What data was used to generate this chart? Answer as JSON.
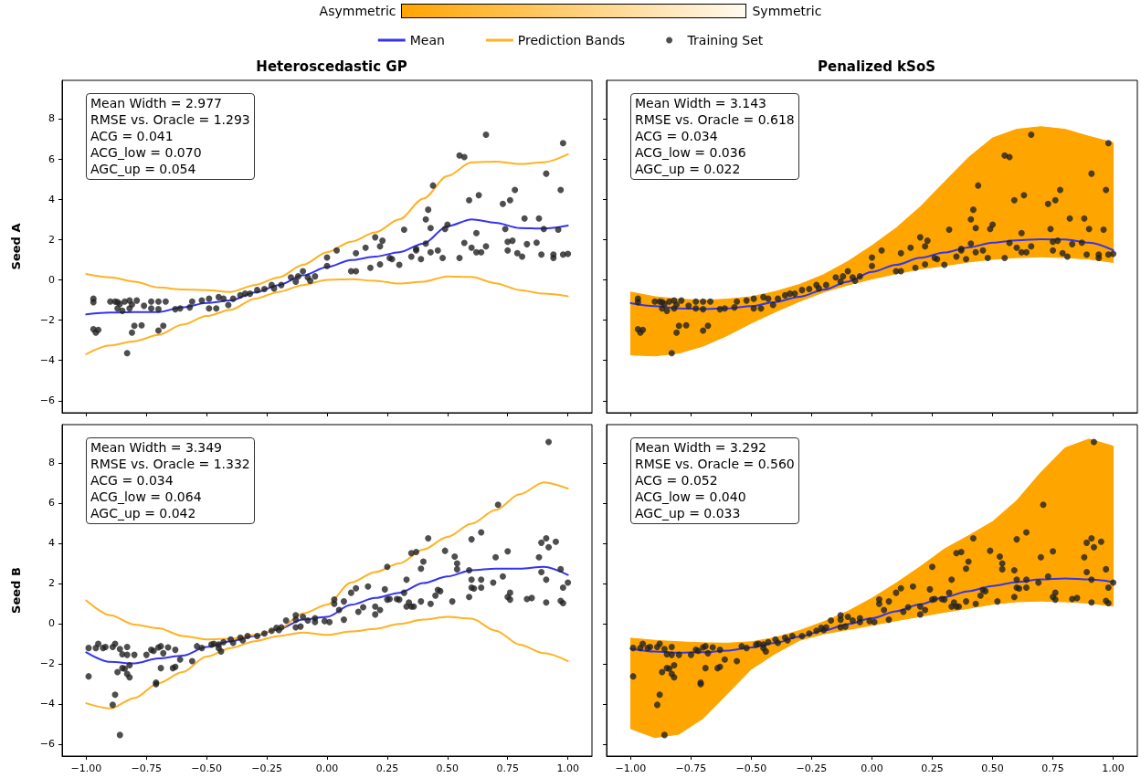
{
  "chart_data": [
    {
      "type": "other",
      "annotations": [
        "Asymmetric",
        "Symmetric"
      ]
    },
    {
      "type": "line",
      "title": "Heteroscedastic GP",
      "ylabel": "Seed A",
      "legend": "top",
      "marker": "none",
      "tick_labels": "y",
      "xlim": [
        -1.1,
        1.1
      ],
      "ylim": [
        -6.6,
        9.9
      ],
      "xticks": [
        -1,
        -0.75,
        -0.5,
        -0.25,
        0,
        0.25,
        0.5,
        0.75,
        1
      ],
      "yticks": [
        {
          "value": -6,
          "label": "−6"
        },
        {
          "value": -4,
          "label": "−4"
        },
        {
          "value": -2,
          "label": "−2"
        },
        0,
        2,
        4,
        6,
        8
      ],
      "annotations": [
        "Mean Width = 2.977",
        "RMSE vs. Oracle = 1.293",
        "ACG = 0.041",
        "ACG_low = 0.070",
        "AGC_up = 0.054"
      ],
      "series": [
        {
          "name": "Mean",
          "type": "line",
          "color": "#3434f0",
          "x": [
            -1,
            -0.9,
            -0.8,
            -0.7,
            -0.6,
            -0.5,
            -0.4,
            -0.3,
            -0.2,
            -0.1,
            0,
            0.1,
            0.2,
            0.3,
            0.4,
            0.5,
            0.6,
            0.7,
            0.8,
            0.9,
            1
          ],
          "values": [
            -1.72,
            -1.63,
            -1.6,
            -1.6,
            -1.37,
            -1.15,
            -1.03,
            -0.63,
            -0.26,
            0.22,
            0.63,
            0.98,
            1.15,
            1.37,
            1.8,
            2.66,
            3.0,
            2.83,
            2.57,
            2.54,
            2.69
          ]
        },
        {
          "name": "Prediction Bands",
          "type": "line",
          "color": "#ffb224",
          "x": [
            -1,
            -0.9,
            -0.8,
            -0.7,
            -0.6,
            -0.5,
            -0.4,
            -0.3,
            -0.2,
            -0.1,
            0,
            0.1,
            0.2,
            0.3,
            0.4,
            0.5,
            0.6,
            0.7,
            0.8,
            0.9,
            1
          ],
          "values": [
            0.29,
            0.12,
            -0.09,
            -0.38,
            -0.48,
            -0.51,
            -0.6,
            -0.26,
            0.12,
            0.74,
            1.37,
            1.89,
            2.35,
            3.0,
            4.03,
            5.15,
            5.83,
            5.87,
            5.75,
            5.83,
            6.23
          ]
        },
        {
          "type": "line",
          "color": "#ffb224",
          "x": [
            -1,
            -0.9,
            -0.8,
            -0.7,
            -0.6,
            -0.5,
            -0.4,
            -0.3,
            -0.2,
            -0.1,
            0,
            0.1,
            0.2,
            0.3,
            0.4,
            0.5,
            0.6,
            0.7,
            0.8,
            0.9,
            1
          ],
          "values": [
            -3.69,
            -3.26,
            -3.05,
            -2.74,
            -2.23,
            -1.8,
            -1.49,
            -0.94,
            -0.6,
            -0.26,
            0,
            0.03,
            -0.05,
            -0.19,
            -0.09,
            0.17,
            0.14,
            -0.17,
            -0.51,
            -0.69,
            -0.82
          ]
        },
        {
          "name": "Training Set",
          "type": "scatter",
          "marker": "circle",
          "color": "#222222",
          "x": [
            -0.97,
            -0.97,
            -0.97,
            -0.96,
            -0.95,
            -0.9,
            -0.88,
            -0.87,
            -0.86,
            -0.87,
            -0.85,
            -0.84,
            -0.82,
            -0.82,
            -0.81,
            -0.83,
            -0.81,
            -0.8,
            -0.79,
            -0.77,
            -0.76,
            -0.73,
            -0.73,
            -0.7,
            -0.7,
            -0.7,
            -0.68,
            -0.67,
            -0.63,
            -0.61,
            -0.57,
            -0.56,
            -0.52,
            -0.49,
            -0.49,
            -0.46,
            -0.45,
            -0.43,
            -0.41,
            -0.39,
            -0.36,
            -0.34,
            -0.32,
            -0.29,
            -0.26,
            -0.23,
            -0.22,
            -0.19,
            -0.15,
            -0.13,
            -0.12,
            -0.1,
            -0.08,
            -0.07,
            -0.05,
            0.0,
            0.0,
            0.04,
            0.1,
            0.12,
            0.12,
            0.16,
            0.18,
            0.2,
            0.22,
            0.22,
            0.23,
            0.26,
            0.27,
            0.3,
            0.32,
            0.35,
            0.37,
            0.37,
            0.39,
            0.41,
            0.41,
            0.42,
            0.43,
            0.43,
            0.44,
            0.46,
            0.48,
            0.49,
            0.5,
            0.55,
            0.55,
            0.57,
            0.57,
            0.59,
            0.6,
            0.62,
            0.62,
            0.63,
            0.64,
            0.66,
            0.66,
            0.73,
            0.74,
            0.75,
            0.75,
            0.76,
            0.77,
            0.78,
            0.79,
            0.81,
            0.82,
            0.83,
            0.87,
            0.88,
            0.89,
            0.9,
            0.91,
            0.94,
            0.94,
            0.96,
            0.97,
            0.98,
            0.98,
            1.0
          ],
          "values": [
            -0.94,
            -1.11,
            -2.45,
            -2.62,
            -2.49,
            -1.08,
            -1.08,
            -1.11,
            -1.2,
            -1.42,
            -1.54,
            -1.08,
            -1.03,
            -1.42,
            -1.23,
            -3.64,
            -2.62,
            -2.28,
            -1.03,
            -2.26,
            -1.29,
            -1.08,
            -1.42,
            -2.52,
            -1.08,
            -1.46,
            -2.28,
            -1.08,
            -1.46,
            -1.42,
            -1.37,
            -1.08,
            -1.03,
            -0.94,
            -1.42,
            -1.42,
            -0.86,
            -0.94,
            -1.25,
            -0.94,
            -0.77,
            -0.69,
            -0.69,
            -0.51,
            -0.46,
            -0.26,
            -0.43,
            -0.26,
            0.12,
            -0.09,
            0.17,
            0.43,
            0.12,
            -0.05,
            0.17,
            0.69,
            1.11,
            1.46,
            0.43,
            0.43,
            1.32,
            1.59,
            0.6,
            2.11,
            1.66,
            0.77,
            1.94,
            1.08,
            1.03,
            0.74,
            2.49,
            1.15,
            1.54,
            1.46,
            1.03,
            1.8,
            3.0,
            3.48,
            2.57,
            1.37,
            4.68,
            1.46,
            1.08,
            2.52,
            2.74,
            6.17,
            1.08,
            1.83,
            6.09,
            3.95,
            1.59,
            1.37,
            2.32,
            4.2,
            1.37,
            1.66,
            7.2,
            3.77,
            2.52,
            1.89,
            1.46,
            3.95,
            1.94,
            4.46,
            1.32,
            1.15,
            3.04,
            1.77,
            1.84,
            3.04,
            1.25,
            2.52,
            5.27,
            1.08,
            1.25,
            2.49,
            4.46,
            6.78,
            1.25,
            1.29
          ]
        }
      ]
    },
    {
      "type": "line",
      "title": "Penalized kSoS",
      "marker": "none",
      "tick_labels": false,
      "xlim": [
        -1.1,
        1.1
      ],
      "ylim": [
        -6.6,
        9.9
      ],
      "xticks": [
        -1,
        -0.75,
        -0.5,
        -0.25,
        0,
        0.25,
        0.5,
        0.75,
        1
      ],
      "yticks": [
        -6,
        -4,
        -2,
        0,
        2,
        4,
        6,
        8
      ],
      "annotations": [
        "Mean Width = 3.143",
        "RMSE vs. Oracle = 0.618",
        "ACG = 0.034",
        "ACG_low = 0.036",
        "AGC_up = 0.022"
      ],
      "series": [
        {
          "type": "line",
          "color": "#3434f0",
          "x": [
            -1,
            -0.9,
            -0.8,
            -0.7,
            -0.6,
            -0.5,
            -0.4,
            -0.3,
            -0.2,
            -0.1,
            0,
            0.1,
            0.2,
            0.3,
            0.4,
            0.5,
            0.6,
            0.7,
            0.8,
            0.9,
            1
          ],
          "values": [
            -1.16,
            -1.31,
            -1.42,
            -1.45,
            -1.42,
            -1.31,
            -1.1,
            -0.84,
            -0.49,
            -0.09,
            0.39,
            0.74,
            1.09,
            1.35,
            1.61,
            1.84,
            1.96,
            2.01,
            2.0,
            1.84,
            1.47
          ],
          "lower": [
            -3.73,
            -3.78,
            -3.64,
            -3.29,
            -2.77,
            -2.15,
            -1.59,
            -1.07,
            -0.61,
            -0.26,
            0.04,
            0.3,
            0.53,
            0.7,
            0.88,
            1.02,
            1.1,
            1.14,
            1.1,
            1.03,
            0.86
          ],
          "upper": [
            -0.61,
            -0.84,
            -0.96,
            -1.02,
            -0.96,
            -0.84,
            -0.58,
            -0.23,
            0.26,
            0.91,
            1.7,
            2.57,
            3.62,
            4.85,
            6.07,
            7.04,
            7.47,
            7.6,
            7.47,
            7.12,
            6.81
          ]
        },
        {
          "type": "scatter",
          "marker": "circle",
          "color": "#222222",
          "x": [
            -0.97,
            -0.97,
            -0.97,
            -0.96,
            -0.95,
            -0.9,
            -0.88,
            -0.87,
            -0.86,
            -0.87,
            -0.85,
            -0.84,
            -0.82,
            -0.82,
            -0.81,
            -0.83,
            -0.81,
            -0.8,
            -0.79,
            -0.77,
            -0.76,
            -0.73,
            -0.73,
            -0.7,
            -0.7,
            -0.7,
            -0.68,
            -0.67,
            -0.63,
            -0.61,
            -0.57,
            -0.56,
            -0.52,
            -0.49,
            -0.49,
            -0.46,
            -0.45,
            -0.43,
            -0.41,
            -0.39,
            -0.36,
            -0.34,
            -0.32,
            -0.29,
            -0.26,
            -0.23,
            -0.22,
            -0.19,
            -0.15,
            -0.13,
            -0.12,
            -0.1,
            -0.08,
            -0.07,
            -0.05,
            0.0,
            0.0,
            0.04,
            0.1,
            0.12,
            0.12,
            0.16,
            0.18,
            0.2,
            0.22,
            0.22,
            0.23,
            0.26,
            0.27,
            0.3,
            0.32,
            0.35,
            0.37,
            0.37,
            0.39,
            0.41,
            0.41,
            0.42,
            0.43,
            0.43,
            0.44,
            0.46,
            0.48,
            0.49,
            0.5,
            0.55,
            0.55,
            0.57,
            0.57,
            0.59,
            0.6,
            0.62,
            0.62,
            0.63,
            0.64,
            0.66,
            0.66,
            0.73,
            0.74,
            0.75,
            0.75,
            0.76,
            0.77,
            0.78,
            0.79,
            0.81,
            0.82,
            0.83,
            0.87,
            0.88,
            0.89,
            0.9,
            0.91,
            0.94,
            0.94,
            0.96,
            0.97,
            0.98,
            0.98,
            1.0
          ],
          "values": [
            -0.94,
            -1.11,
            -2.45,
            -2.62,
            -2.49,
            -1.08,
            -1.08,
            -1.11,
            -1.2,
            -1.42,
            -1.54,
            -1.08,
            -1.03,
            -1.42,
            -1.23,
            -3.64,
            -2.62,
            -2.28,
            -1.03,
            -2.26,
            -1.29,
            -1.08,
            -1.42,
            -2.52,
            -1.08,
            -1.46,
            -2.28,
            -1.08,
            -1.46,
            -1.42,
            -1.37,
            -1.08,
            -1.03,
            -0.94,
            -1.42,
            -1.42,
            -0.86,
            -0.94,
            -1.25,
            -0.94,
            -0.77,
            -0.69,
            -0.69,
            -0.51,
            -0.46,
            -0.26,
            -0.43,
            -0.26,
            0.12,
            -0.09,
            0.17,
            0.43,
            0.12,
            -0.05,
            0.17,
            0.69,
            1.11,
            1.46,
            0.43,
            0.43,
            1.32,
            1.59,
            0.6,
            2.11,
            1.66,
            0.77,
            1.94,
            1.08,
            1.03,
            0.74,
            2.49,
            1.15,
            1.54,
            1.46,
            1.03,
            1.8,
            3.0,
            3.48,
            2.57,
            1.37,
            4.68,
            1.46,
            1.08,
            2.52,
            2.74,
            6.17,
            1.08,
            1.83,
            6.09,
            3.95,
            1.59,
            1.37,
            2.32,
            4.2,
            1.37,
            1.66,
            7.2,
            3.77,
            2.52,
            1.89,
            1.46,
            3.95,
            1.94,
            4.46,
            1.32,
            1.15,
            3.04,
            1.77,
            1.84,
            3.04,
            1.25,
            2.52,
            5.27,
            1.08,
            1.25,
            2.49,
            4.46,
            6.78,
            1.25,
            1.29
          ]
        }
      ]
    },
    {
      "type": "line",
      "ylabel": "Seed B",
      "marker": "none",
      "xlim": [
        -1.1,
        1.1
      ],
      "ylim": [
        -6.6,
        9.9
      ],
      "xticks": [
        {
          "value": -1,
          "label": "−1.00"
        },
        {
          "value": -0.75,
          "label": "−0.75"
        },
        {
          "value": -0.5,
          "label": "−0.50"
        },
        {
          "value": -0.25,
          "label": "−0.25"
        },
        {
          "value": 0,
          "label": "0.00"
        },
        {
          "value": 0.25,
          "label": "0.25"
        },
        {
          "value": 0.5,
          "label": "0.50"
        },
        {
          "value": 0.75,
          "label": "0.75"
        },
        {
          "value": 1,
          "label": "1.00"
        }
      ],
      "yticks": [
        {
          "value": -6,
          "label": "−6"
        },
        {
          "value": -4,
          "label": "−4"
        },
        {
          "value": -2,
          "label": "−2"
        },
        0,
        2,
        4,
        6,
        8
      ],
      "annotations": [
        "Mean Width = 3.349",
        "RMSE vs. Oracle = 1.332",
        "ACG = 0.034",
        "ACG_low = 0.064",
        "AGC_up = 0.042"
      ],
      "series": [
        {
          "type": "line",
          "color": "#3434f0",
          "x": [
            -1,
            -0.9,
            -0.8,
            -0.7,
            -0.6,
            -0.5,
            -0.4,
            -0.3,
            -0.2,
            -0.1,
            0,
            0.1,
            0.2,
            0.3,
            0.4,
            0.5,
            0.6,
            0.7,
            0.8,
            0.9,
            1
          ],
          "values": [
            -1.43,
            -1.91,
            -1.99,
            -1.74,
            -1.6,
            -1.17,
            -0.88,
            -0.62,
            -0.27,
            0.19,
            0.33,
            0.93,
            1.27,
            1.53,
            2.01,
            2.34,
            2.65,
            2.73,
            2.73,
            2.82,
            2.42
          ]
        },
        {
          "type": "line",
          "color": "#ffb224",
          "x": [
            -1,
            -0.9,
            -0.8,
            -0.7,
            -0.6,
            -0.5,
            -0.4,
            -0.3,
            -0.2,
            -0.1,
            0,
            0.1,
            0.2,
            0.3,
            0.4,
            0.5,
            0.6,
            0.7,
            0.8,
            0.9,
            1
          ],
          "values": [
            1.15,
            0.41,
            -0.05,
            -0.24,
            -0.62,
            -0.79,
            -0.76,
            -0.57,
            -0.27,
            0.5,
            0.93,
            2.04,
            2.56,
            2.99,
            3.68,
            4.31,
            4.97,
            5.65,
            6.43,
            7.03,
            6.72
          ]
        },
        {
          "type": "line",
          "color": "#ffb224",
          "x": [
            -1,
            -0.9,
            -0.8,
            -0.7,
            -0.6,
            -0.5,
            -0.4,
            -0.3,
            -0.2,
            -0.1,
            0,
            0.1,
            0.2,
            0.3,
            0.4,
            0.5,
            0.6,
            0.7,
            0.8,
            0.9,
            1
          ],
          "values": [
            -3.97,
            -4.23,
            -3.71,
            -2.97,
            -2.42,
            -1.65,
            -1.22,
            -0.88,
            -0.62,
            -0.45,
            -0.57,
            -0.4,
            -0.27,
            -0.02,
            0.19,
            0.33,
            0.24,
            -0.36,
            -1.05,
            -1.48,
            -1.87
          ]
        },
        {
          "type": "scatter",
          "marker": "circle",
          "color": "#222222",
          "x": [
            -0.99,
            -0.99,
            -0.96,
            -0.95,
            -0.93,
            -0.92,
            -0.89,
            -0.88,
            -0.88,
            -0.89,
            -0.87,
            -0.86,
            -0.85,
            -0.85,
            -0.84,
            -0.83,
            -0.83,
            -0.83,
            -0.82,
            -0.82,
            -0.8,
            -0.75,
            -0.73,
            -0.72,
            -0.71,
            -0.71,
            -0.7,
            -0.69,
            -0.69,
            -0.68,
            -0.66,
            -0.64,
            -0.63,
            -0.63,
            -0.61,
            -0.86,
            -0.56,
            -0.54,
            -0.52,
            -0.48,
            -0.47,
            -0.45,
            -0.45,
            -0.44,
            -0.43,
            -0.4,
            -0.39,
            -0.36,
            -0.35,
            -0.33,
            -0.29,
            -0.26,
            -0.23,
            -0.21,
            -0.2,
            -0.19,
            -0.17,
            -0.13,
            -0.13,
            -0.13,
            -0.11,
            -0.1,
            -0.08,
            -0.05,
            -0.05,
            -0.01,
            0.01,
            0.03,
            0.03,
            0.05,
            0.07,
            0.07,
            0.1,
            0.12,
            0.13,
            0.15,
            0.17,
            0.2,
            0.2,
            0.22,
            0.24,
            0.25,
            0.25,
            0.26,
            0.29,
            0.3,
            0.32,
            0.33,
            0.33,
            0.34,
            0.35,
            0.36,
            0.37,
            0.35,
            0.39,
            0.39,
            0.4,
            0.42,
            0.43,
            0.45,
            0.46,
            0.47,
            0.49,
            0.52,
            0.53,
            0.54,
            0.54,
            0.59,
            0.59,
            0.6,
            0.6,
            0.6,
            0.61,
            0.64,
            0.64,
            0.64,
            0.69,
            0.7,
            0.71,
            0.73,
            0.75,
            0.75,
            0.76,
            0.76,
            0.83,
            0.85,
            0.88,
            0.89,
            0.89,
            0.91,
            0.91,
            0.91,
            0.92,
            0.92,
            0.95,
            0.97,
            0.97,
            0.98,
            0.98,
            1.0
          ],
          "values": [
            -1.22,
            -2.63,
            -1.22,
            -1.01,
            -1.22,
            -1.17,
            -1.17,
            -1.01,
            -3.54,
            -4.05,
            -2.42,
            -1.27,
            -2.22,
            -1.53,
            -2.25,
            -2.51,
            -1.17,
            -1.56,
            -2.68,
            -2.08,
            -1.56,
            -1.56,
            -1.31,
            -1.36,
            -2.94,
            -3.02,
            -1.19,
            -2.22,
            -1.13,
            -1.48,
            -1.19,
            -2.22,
            -1.31,
            -2.16,
            -1.79,
            -5.55,
            -1.87,
            -1.13,
            -1.22,
            -1.05,
            -1.01,
            -1.05,
            -1.22,
            -1.39,
            -0.93,
            -0.79,
            -0.96,
            -0.7,
            -0.84,
            -0.62,
            -0.62,
            -0.5,
            -0.36,
            -0.22,
            -0.33,
            -0.19,
            0.15,
            0.19,
            0.41,
            -0.19,
            -0.15,
            0.33,
            0.15,
            0.26,
            0.07,
            0.12,
            0.07,
            1.19,
            0.98,
            0.67,
            0.19,
            1.1,
            1.53,
            1.75,
            0.58,
            0.81,
            1.84,
            0.84,
            0.45,
            0.67,
            1.7,
            1.19,
            2.82,
            1.22,
            1.22,
            1.19,
            1.53,
            2.18,
            0.84,
            1.05,
            0.84,
            0.84,
            3.56,
            3.5,
            2.73,
            1.1,
            3.08,
            4.24,
            0.98,
            1.39,
            1.67,
            1.61,
            3.62,
            1.1,
            3.33,
            2.99,
            2.7,
            2.65,
            1.32,
            4.19,
            2.18,
            1.79,
            1.74,
            4.54,
            2.18,
            1.79,
            2.04,
            3.3,
            5.91,
            2.34,
            3.59,
            1.32,
            1.53,
            1.19,
            1.22,
            1.27,
            3.3,
            2.56,
            4.02,
            2.18,
            1.05,
            4.24,
            9.04,
            3.8,
            4.07,
            1.13,
            2.7,
            1.79,
            1.01,
            2.04
          ]
        }
      ]
    },
    {
      "type": "line",
      "marker": "none",
      "tick_labels": "x",
      "xlim": [
        -1.1,
        1.1
      ],
      "ylim": [
        -6.6,
        9.9
      ],
      "xticks": [
        {
          "value": -1,
          "label": "−1.00"
        },
        {
          "value": -0.75,
          "label": "−0.75"
        },
        {
          "value": -0.5,
          "label": "−0.50"
        },
        {
          "value": -0.25,
          "label": "−0.25"
        },
        {
          "value": 0,
          "label": "0.00"
        },
        {
          "value": 0.25,
          "label": "0.25"
        },
        {
          "value": 0.5,
          "label": "0.50"
        },
        {
          "value": 0.75,
          "label": "0.75"
        },
        {
          "value": 1,
          "label": "1.00"
        }
      ],
      "yticks": [
        -6,
        -4,
        -2,
        0,
        2,
        4,
        6,
        8
      ],
      "annotations": [
        "Mean Width = 3.292",
        "RMSE vs. Oracle = 0.560",
        "ACG = 0.052",
        "ACG_low = 0.040",
        "AGC_up = 0.033"
      ],
      "series": [
        {
          "type": "line",
          "color": "#3434f0",
          "x": [
            -1,
            -0.9,
            -0.8,
            -0.7,
            -0.6,
            -0.5,
            -0.4,
            -0.3,
            -0.2,
            -0.1,
            0,
            0.1,
            0.2,
            0.3,
            0.4,
            0.5,
            0.6,
            0.7,
            0.8,
            0.9,
            1
          ],
          "values": [
            -1.26,
            -1.4,
            -1.45,
            -1.43,
            -1.35,
            -1.19,
            -0.96,
            -0.66,
            -0.35,
            -0.03,
            0.26,
            0.61,
            0.96,
            1.31,
            1.61,
            1.87,
            2.06,
            2.19,
            2.24,
            2.19,
            2.06
          ],
          "lower": [
            -5.24,
            -5.68,
            -5.51,
            -4.72,
            -3.5,
            -2.27,
            -1.49,
            -0.84,
            -0.52,
            -0.31,
            -0.09,
            0.14,
            0.35,
            0.56,
            0.75,
            0.96,
            1.08,
            1.12,
            1.08,
            1.01,
            0.87
          ],
          "upper": [
            -0.73,
            -0.84,
            -0.91,
            -0.96,
            -0.98,
            -0.91,
            -0.7,
            -0.35,
            0.09,
            0.61,
            1.26,
            2.01,
            2.83,
            3.71,
            4.37,
            5.07,
            6.12,
            7.52,
            8.74,
            9.18,
            8.83
          ]
        },
        {
          "type": "scatter",
          "marker": "circle",
          "color": "#222222",
          "x": [
            -0.99,
            -0.99,
            -0.96,
            -0.95,
            -0.93,
            -0.92,
            -0.89,
            -0.88,
            -0.88,
            -0.89,
            -0.87,
            -0.86,
            -0.85,
            -0.85,
            -0.84,
            -0.83,
            -0.83,
            -0.83,
            -0.82,
            -0.82,
            -0.8,
            -0.75,
            -0.73,
            -0.72,
            -0.71,
            -0.71,
            -0.7,
            -0.69,
            -0.69,
            -0.68,
            -0.66,
            -0.64,
            -0.63,
            -0.63,
            -0.61,
            -0.86,
            -0.56,
            -0.54,
            -0.52,
            -0.48,
            -0.47,
            -0.45,
            -0.45,
            -0.44,
            -0.43,
            -0.4,
            -0.39,
            -0.36,
            -0.35,
            -0.33,
            -0.29,
            -0.26,
            -0.23,
            -0.21,
            -0.2,
            -0.19,
            -0.17,
            -0.13,
            -0.13,
            -0.13,
            -0.11,
            -0.1,
            -0.08,
            -0.05,
            -0.05,
            -0.01,
            0.01,
            0.03,
            0.03,
            0.05,
            0.07,
            0.07,
            0.1,
            0.12,
            0.13,
            0.15,
            0.17,
            0.2,
            0.2,
            0.22,
            0.24,
            0.25,
            0.25,
            0.26,
            0.29,
            0.3,
            0.32,
            0.33,
            0.33,
            0.34,
            0.35,
            0.36,
            0.37,
            0.35,
            0.39,
            0.39,
            0.4,
            0.42,
            0.43,
            0.45,
            0.46,
            0.47,
            0.49,
            0.52,
            0.53,
            0.54,
            0.54,
            0.59,
            0.59,
            0.6,
            0.6,
            0.6,
            0.61,
            0.64,
            0.64,
            0.64,
            0.69,
            0.7,
            0.71,
            0.73,
            0.75,
            0.75,
            0.76,
            0.76,
            0.83,
            0.85,
            0.88,
            0.89,
            0.89,
            0.91,
            0.91,
            0.91,
            0.92,
            0.92,
            0.95,
            0.97,
            0.97,
            0.98,
            0.98,
            1.0
          ],
          "values": [
            -1.22,
            -2.63,
            -1.22,
            -1.01,
            -1.22,
            -1.17,
            -1.17,
            -1.01,
            -3.54,
            -4.05,
            -2.42,
            -1.27,
            -2.22,
            -1.53,
            -2.25,
            -2.51,
            -1.17,
            -1.56,
            -2.68,
            -2.08,
            -1.56,
            -1.56,
            -1.31,
            -1.36,
            -2.94,
            -3.02,
            -1.19,
            -2.22,
            -1.13,
            -1.48,
            -1.19,
            -2.22,
            -1.31,
            -2.16,
            -1.79,
            -5.55,
            -1.87,
            -1.13,
            -1.22,
            -1.05,
            -1.01,
            -1.05,
            -1.22,
            -1.39,
            -0.93,
            -0.79,
            -0.96,
            -0.7,
            -0.84,
            -0.62,
            -0.62,
            -0.5,
            -0.36,
            -0.22,
            -0.33,
            -0.19,
            0.15,
            0.19,
            0.41,
            -0.19,
            -0.15,
            0.33,
            0.15,
            0.26,
            0.07,
            0.12,
            0.07,
            1.19,
            0.98,
            0.67,
            0.19,
            1.1,
            1.53,
            1.75,
            0.58,
            0.81,
            1.84,
            0.84,
            0.45,
            0.67,
            1.7,
            1.19,
            2.82,
            1.22,
            1.22,
            1.19,
            1.53,
            2.18,
            0.84,
            1.05,
            0.84,
            0.84,
            3.56,
            3.5,
            2.73,
            1.1,
            3.08,
            4.24,
            0.98,
            1.39,
            1.67,
            1.61,
            3.62,
            1.1,
            3.33,
            2.99,
            2.7,
            2.65,
            1.32,
            4.19,
            2.18,
            1.79,
            1.74,
            4.54,
            2.18,
            1.79,
            2.04,
            3.3,
            5.91,
            2.34,
            3.59,
            1.32,
            1.53,
            1.19,
            1.22,
            1.27,
            3.3,
            2.56,
            4.02,
            2.18,
            1.05,
            4.24,
            9.04,
            3.8,
            4.07,
            1.13,
            2.7,
            1.79,
            1.01,
            2.04
          ]
        }
      ]
    }
  ]
}
